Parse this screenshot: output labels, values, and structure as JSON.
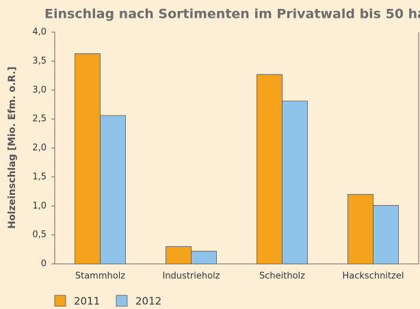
{
  "chart_data": {
    "type": "bar",
    "title": "Einschlag nach Sortimenten im Privatwald bis 50 ha",
    "y_label": "Holzeinschlag  [Mio. Efm. o.R.]",
    "categories": [
      "Stammholz",
      "Industrieholz",
      "Scheitholz",
      "Hackschnitzel"
    ],
    "series": [
      {
        "name": "2011",
        "color": "#f5a21c",
        "values": [
          3.63,
          0.3,
          3.27,
          1.2
        ]
      },
      {
        "name": "2012",
        "color": "#8fc3ea",
        "values": [
          2.56,
          0.22,
          2.81,
          1.01
        ]
      }
    ],
    "ylim": [
      0,
      4
    ],
    "yticks": [
      0,
      {
        "value": 0.5,
        "label": "0,5"
      },
      {
        "value": 1,
        "label": "1,0"
      },
      {
        "value": 1.5,
        "label": "1,5"
      },
      {
        "value": 2,
        "label": "2,0"
      },
      {
        "value": 2.5,
        "label": "2,5"
      },
      {
        "value": 3,
        "label": "3,0"
      },
      {
        "value": 3.5,
        "label": "3,5"
      },
      {
        "value": 4,
        "label": "4,0"
      }
    ]
  }
}
